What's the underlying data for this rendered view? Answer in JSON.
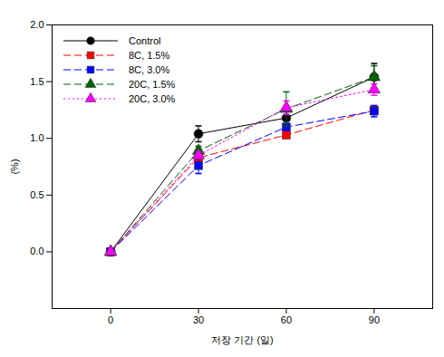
{
  "chart_data": {
    "type": "line",
    "x_label": "저장 기간 (일)",
    "y_label": "(%)",
    "x": [
      0,
      30,
      60,
      90
    ],
    "xlim": [
      -20,
      110
    ],
    "xticks": [
      0,
      30,
      60,
      90
    ],
    "ylim": [
      -0.5,
      2.0
    ],
    "yticks": [
      {
        "value": 0,
        "label": "0.0"
      },
      {
        "value": 0.5,
        "label": "0.5"
      },
      {
        "value": 1,
        "label": "1.0"
      },
      {
        "value": 1.5,
        "label": "1.5"
      },
      {
        "value": 2,
        "label": "2.0"
      }
    ],
    "legend": "upper left",
    "series": [
      {
        "name": "Control",
        "color": "#000000",
        "marker": "circle",
        "line_style": "solid",
        "values": [
          0,
          1.04,
          1.18,
          1.54
        ],
        "errors": [
          0,
          0.07,
          0.07,
          0.12
        ]
      },
      {
        "name": "8C, 1.5%",
        "color": "#ff0000",
        "marker": "square",
        "line_style": "dashed",
        "values": [
          0,
          0.83,
          1.03,
          1.25
        ],
        "errors": [
          0,
          0.03,
          0.03,
          0.03
        ]
      },
      {
        "name": "8C, 3.0%",
        "color": "#0000ff",
        "marker": "square",
        "line_style": "dashed",
        "values": [
          0,
          0.76,
          1.1,
          1.24
        ],
        "errors": [
          0,
          0.07,
          0.03,
          0.05
        ]
      },
      {
        "name": "20C, 1.5%",
        "color": "#006400",
        "marker": "triangle",
        "line_style": "dashed",
        "values": [
          0,
          0.89,
          1.26,
          1.54
        ],
        "errors": [
          0,
          0.04,
          0.15,
          0.1
        ]
      },
      {
        "name": "20C, 3.0%",
        "color": "#ff00ff",
        "marker": "triangle",
        "line_style": "dotted",
        "values": [
          0,
          0.85,
          1.27,
          1.43
        ],
        "errors": [
          0,
          0.03,
          0.06,
          0.05
        ]
      }
    ]
  }
}
